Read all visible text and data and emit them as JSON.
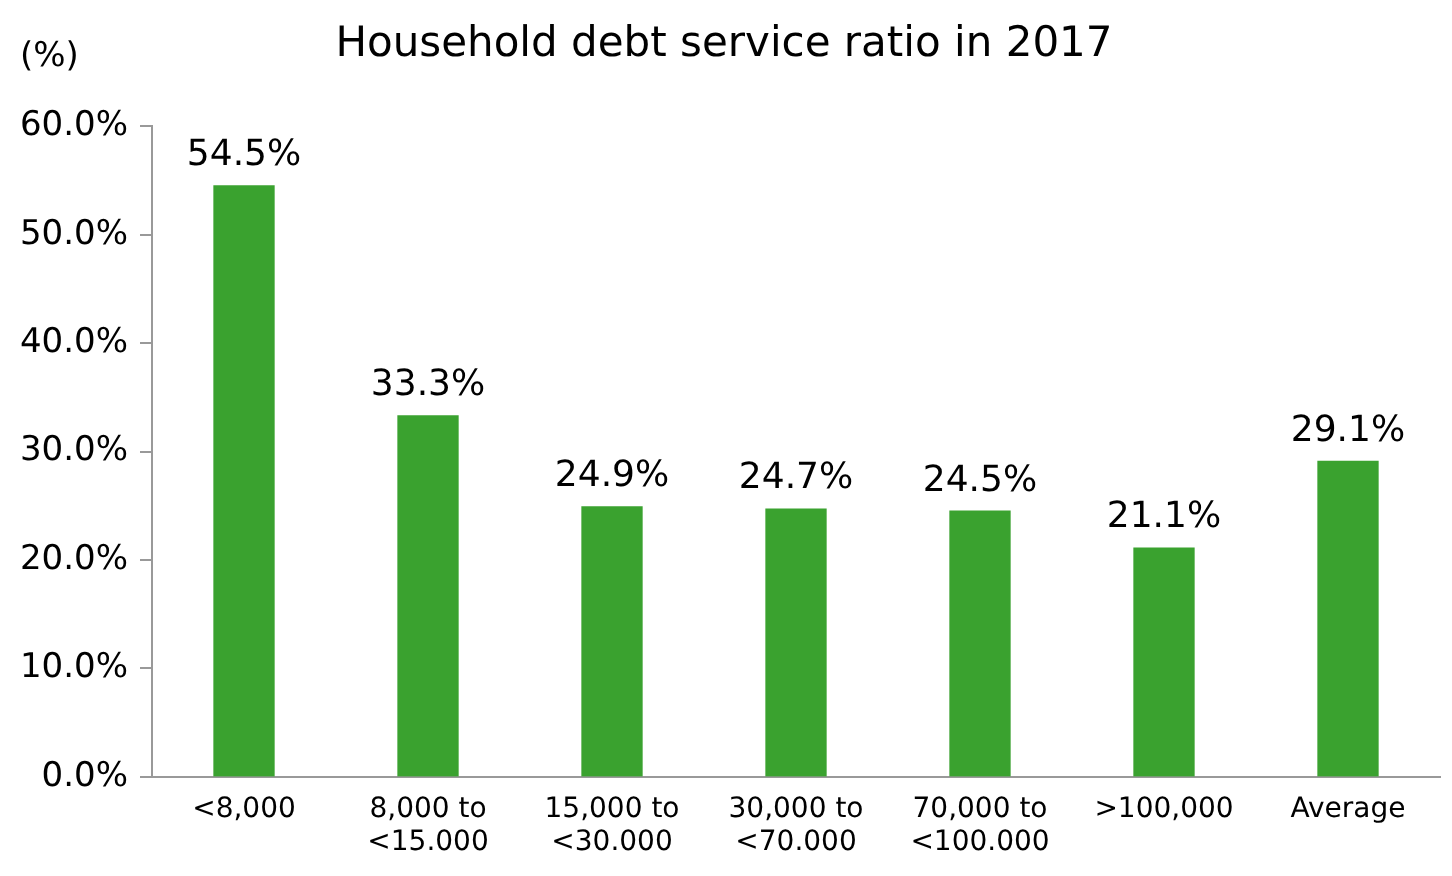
{
  "chart_data": {
    "type": "bar",
    "title": "Household debt service ratio in 2017",
    "ylabel": "(%)",
    "categories": [
      "<8,000",
      "8,000 to <15.000",
      "15,000 to <30.000",
      "30,000 to <70.000",
      "70,000 to <100.000",
      ">100,000",
      "Average"
    ],
    "values": [
      54.5,
      33.3,
      24.9,
      24.7,
      24.5,
      21.1,
      29.1
    ],
    "value_labels": [
      "54.5%",
      "33.3%",
      "24.9%",
      "24.7%",
      "24.5%",
      "21.1%",
      "29.1%"
    ],
    "color": "#3aa22f",
    "ylim": [
      0,
      60
    ],
    "yticks": [
      {
        "value": 0,
        "label": "0.0%"
      },
      {
        "value": 10,
        "label": "10.0%"
      },
      {
        "value": 20,
        "label": "20.0%"
      },
      {
        "value": 30,
        "label": "30.0%"
      },
      {
        "value": 40,
        "label": "40.0%"
      },
      {
        "value": 50,
        "label": "50.0%"
      },
      {
        "value": 60,
        "label": "60.0%"
      }
    ],
    "grid": false,
    "legend": false
  }
}
